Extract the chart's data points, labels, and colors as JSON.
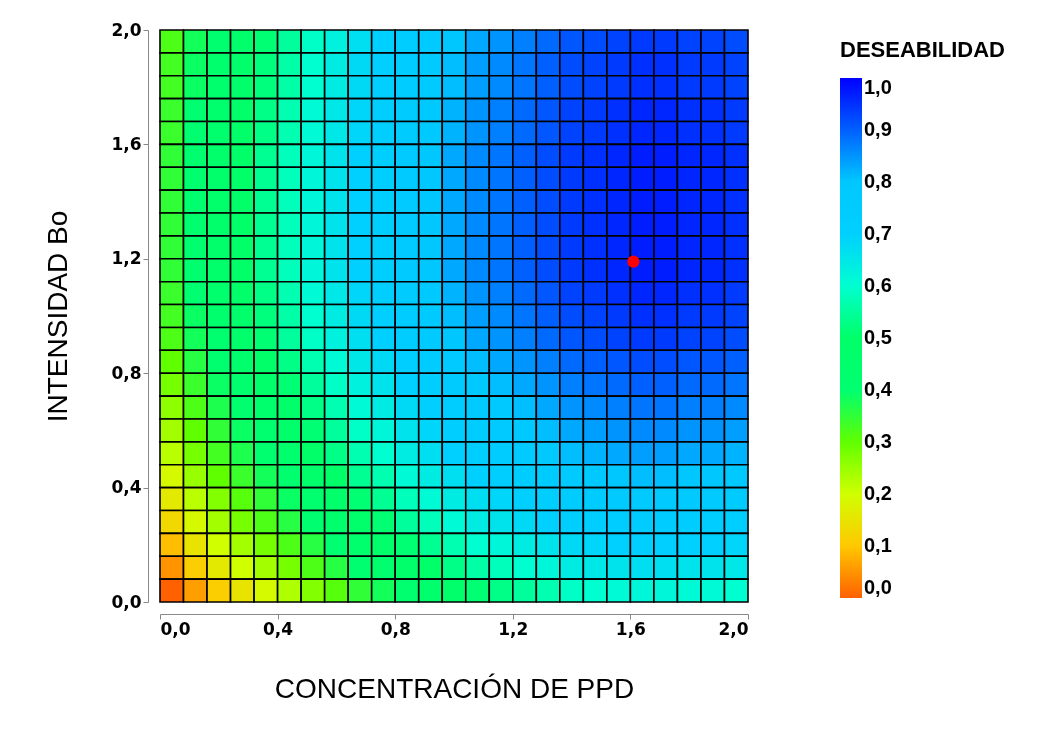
{
  "chart_data": {
    "type": "heatmap",
    "xlabel": "CONCENTRACIÓN DE PPD",
    "ylabel": "INTENSIDAD Bo",
    "legend_title": "DESEABILIDAD",
    "x": [
      0.04,
      0.12,
      0.2,
      0.28,
      0.36,
      0.44,
      0.52,
      0.6,
      0.68,
      0.76,
      0.84,
      0.92,
      1,
      1.08,
      1.16,
      1.24,
      1.32,
      1.4,
      1.48,
      1.56,
      1.64,
      1.72,
      1.8,
      1.88,
      1.96
    ],
    "y": [
      1.96,
      1.88,
      1.8,
      1.72,
      1.64,
      1.56,
      1.48,
      1.4,
      1.32,
      1.24,
      1.16,
      1.08,
      1,
      0.92,
      0.84,
      0.76,
      0.68,
      0.6,
      0.52,
      0.44,
      0.36,
      0.28,
      0.2,
      0.12,
      0.04
    ],
    "xlim": [
      0,
      2
    ],
    "ylim": [
      0,
      2
    ],
    "xticks": [
      {
        "value": 0,
        "label": "0,0"
      },
      {
        "value": 0.4,
        "label": "0,4"
      },
      {
        "value": 0.8,
        "label": "0,8"
      },
      {
        "value": 1.2,
        "label": "1,2"
      },
      {
        "value": 1.6,
        "label": "1,6"
      },
      {
        "value": 2,
        "label": "2,0"
      }
    ],
    "yticks": [
      {
        "value": 0,
        "label": "0,0"
      },
      {
        "value": 0.4,
        "label": "0,4"
      },
      {
        "value": 0.8,
        "label": "0,8"
      },
      {
        "value": 1.2,
        "label": "1,2"
      },
      {
        "value": 1.6,
        "label": "1,6"
      },
      {
        "value": 2,
        "label": "2,0"
      }
    ],
    "clim": [
      0,
      1
    ],
    "cticks": [
      {
        "value": 0,
        "label": "0,0"
      },
      {
        "value": 0.1,
        "label": "0,1"
      },
      {
        "value": 0.2,
        "label": "0,2"
      },
      {
        "value": 0.3,
        "label": "0,3"
      },
      {
        "value": 0.4,
        "label": "0,4"
      },
      {
        "value": 0.5,
        "label": "0,5"
      },
      {
        "value": 0.6,
        "label": "0,6"
      },
      {
        "value": 0.7,
        "label": "0,7"
      },
      {
        "value": 0.8,
        "label": "0,8"
      },
      {
        "value": 0.9,
        "label": "0,9"
      },
      {
        "value": 1,
        "label": "1,0"
      }
    ],
    "colors": [
      "#ff6000",
      "#ffc800",
      "#d0ff00",
      "#60ff00",
      "#00ff70",
      "#00ff68",
      "#00ffd0",
      "#00d0ff",
      "#00c8ff",
      "#0060ff",
      "#0000ff"
    ],
    "cells": [
      [
        0.32,
        0.38,
        0.43,
        0.47,
        0.51,
        0.55,
        0.59,
        0.63,
        0.67,
        0.7,
        0.74,
        0.77,
        0.8,
        0.83,
        0.85,
        0.87,
        0.89,
        0.91,
        0.92,
        0.93,
        0.94,
        0.94,
        0.93,
        0.93,
        0.92
      ],
      [
        0.33,
        0.39,
        0.44,
        0.48,
        0.52,
        0.56,
        0.6,
        0.64,
        0.68,
        0.71,
        0.75,
        0.78,
        0.81,
        0.84,
        0.86,
        0.88,
        0.9,
        0.92,
        0.93,
        0.94,
        0.95,
        0.95,
        0.94,
        0.94,
        0.93
      ],
      [
        0.33,
        0.39,
        0.44,
        0.48,
        0.52,
        0.56,
        0.6,
        0.64,
        0.68,
        0.71,
        0.75,
        0.78,
        0.81,
        0.84,
        0.86,
        0.88,
        0.9,
        0.92,
        0.93,
        0.94,
        0.95,
        0.95,
        0.94,
        0.94,
        0.93
      ],
      [
        0.34,
        0.4,
        0.45,
        0.49,
        0.53,
        0.57,
        0.61,
        0.65,
        0.69,
        0.72,
        0.76,
        0.79,
        0.82,
        0.85,
        0.87,
        0.89,
        0.91,
        0.93,
        0.94,
        0.95,
        0.96,
        0.96,
        0.95,
        0.95,
        0.94
      ],
      [
        0.34,
        0.4,
        0.45,
        0.49,
        0.53,
        0.57,
        0.61,
        0.65,
        0.69,
        0.72,
        0.76,
        0.79,
        0.82,
        0.85,
        0.87,
        0.89,
        0.91,
        0.93,
        0.94,
        0.95,
        0.96,
        0.96,
        0.95,
        0.95,
        0.94
      ],
      [
        0.35,
        0.41,
        0.46,
        0.5,
        0.54,
        0.58,
        0.62,
        0.66,
        0.7,
        0.73,
        0.77,
        0.8,
        0.83,
        0.86,
        0.88,
        0.9,
        0.92,
        0.94,
        0.95,
        0.96,
        0.97,
        0.97,
        0.96,
        0.96,
        0.95
      ],
      [
        0.35,
        0.41,
        0.46,
        0.5,
        0.54,
        0.58,
        0.62,
        0.66,
        0.7,
        0.73,
        0.77,
        0.8,
        0.83,
        0.86,
        0.88,
        0.9,
        0.92,
        0.94,
        0.95,
        0.96,
        0.97,
        0.97,
        0.96,
        0.96,
        0.95
      ],
      [
        0.35,
        0.41,
        0.46,
        0.5,
        0.54,
        0.58,
        0.62,
        0.66,
        0.7,
        0.73,
        0.77,
        0.8,
        0.83,
        0.86,
        0.88,
        0.9,
        0.92,
        0.94,
        0.95,
        0.96,
        0.97,
        0.97,
        0.96,
        0.96,
        0.95
      ],
      [
        0.35,
        0.41,
        0.46,
        0.5,
        0.54,
        0.58,
        0.62,
        0.66,
        0.7,
        0.73,
        0.77,
        0.8,
        0.83,
        0.86,
        0.88,
        0.9,
        0.92,
        0.94,
        0.95,
        0.96,
        0.97,
        0.97,
        0.96,
        0.96,
        0.95
      ],
      [
        0.35,
        0.41,
        0.46,
        0.5,
        0.54,
        0.58,
        0.62,
        0.66,
        0.7,
        0.73,
        0.77,
        0.8,
        0.83,
        0.86,
        0.88,
        0.9,
        0.92,
        0.94,
        0.95,
        0.96,
        0.97,
        0.97,
        0.96,
        0.96,
        0.95
      ],
      [
        0.35,
        0.41,
        0.46,
        0.5,
        0.54,
        0.58,
        0.62,
        0.66,
        0.7,
        0.73,
        0.77,
        0.8,
        0.83,
        0.86,
        0.88,
        0.9,
        0.92,
        0.94,
        0.95,
        0.96,
        0.97,
        0.97,
        0.96,
        0.96,
        0.95
      ],
      [
        0.34,
        0.4,
        0.45,
        0.49,
        0.53,
        0.57,
        0.61,
        0.65,
        0.69,
        0.72,
        0.76,
        0.79,
        0.82,
        0.85,
        0.87,
        0.89,
        0.91,
        0.93,
        0.94,
        0.95,
        0.96,
        0.96,
        0.95,
        0.95,
        0.94
      ],
      [
        0.33,
        0.39,
        0.44,
        0.48,
        0.52,
        0.56,
        0.6,
        0.64,
        0.68,
        0.71,
        0.75,
        0.78,
        0.81,
        0.84,
        0.86,
        0.88,
        0.9,
        0.92,
        0.93,
        0.94,
        0.95,
        0.95,
        0.94,
        0.94,
        0.93
      ],
      [
        0.32,
        0.38,
        0.43,
        0.47,
        0.51,
        0.55,
        0.59,
        0.63,
        0.67,
        0.7,
        0.74,
        0.77,
        0.8,
        0.83,
        0.85,
        0.87,
        0.89,
        0.91,
        0.92,
        0.93,
        0.94,
        0.94,
        0.93,
        0.93,
        0.92
      ],
      [
        0.3,
        0.36,
        0.41,
        0.45,
        0.49,
        0.53,
        0.57,
        0.61,
        0.65,
        0.68,
        0.72,
        0.75,
        0.78,
        0.81,
        0.83,
        0.85,
        0.87,
        0.89,
        0.9,
        0.91,
        0.92,
        0.92,
        0.91,
        0.91,
        0.9
      ],
      [
        0.28,
        0.34,
        0.39,
        0.43,
        0.47,
        0.51,
        0.55,
        0.59,
        0.63,
        0.66,
        0.7,
        0.73,
        0.76,
        0.79,
        0.81,
        0.83,
        0.85,
        0.87,
        0.88,
        0.89,
        0.9,
        0.9,
        0.89,
        0.89,
        0.88
      ],
      [
        0.26,
        0.32,
        0.37,
        0.41,
        0.45,
        0.49,
        0.53,
        0.57,
        0.61,
        0.64,
        0.68,
        0.71,
        0.74,
        0.77,
        0.79,
        0.81,
        0.83,
        0.85,
        0.86,
        0.87,
        0.88,
        0.88,
        0.87,
        0.87,
        0.86
      ],
      [
        0.24,
        0.3,
        0.35,
        0.39,
        0.43,
        0.47,
        0.51,
        0.55,
        0.59,
        0.62,
        0.66,
        0.69,
        0.72,
        0.75,
        0.77,
        0.79,
        0.81,
        0.83,
        0.84,
        0.85,
        0.86,
        0.86,
        0.85,
        0.85,
        0.84
      ],
      [
        0.22,
        0.28,
        0.33,
        0.37,
        0.41,
        0.45,
        0.49,
        0.53,
        0.57,
        0.6,
        0.64,
        0.67,
        0.7,
        0.73,
        0.75,
        0.77,
        0.79,
        0.81,
        0.82,
        0.83,
        0.84,
        0.84,
        0.83,
        0.83,
        0.82
      ],
      [
        0.19,
        0.25,
        0.3,
        0.34,
        0.38,
        0.42,
        0.46,
        0.5,
        0.54,
        0.57,
        0.61,
        0.64,
        0.67,
        0.7,
        0.72,
        0.74,
        0.76,
        0.78,
        0.79,
        0.8,
        0.81,
        0.81,
        0.8,
        0.8,
        0.79
      ],
      [
        0.16,
        0.22,
        0.27,
        0.31,
        0.35,
        0.39,
        0.43,
        0.47,
        0.51,
        0.54,
        0.58,
        0.61,
        0.64,
        0.67,
        0.69,
        0.71,
        0.73,
        0.75,
        0.76,
        0.77,
        0.78,
        0.78,
        0.77,
        0.77,
        0.76
      ],
      [
        0.13,
        0.19,
        0.24,
        0.28,
        0.32,
        0.36,
        0.4,
        0.44,
        0.48,
        0.51,
        0.55,
        0.58,
        0.61,
        0.64,
        0.66,
        0.68,
        0.7,
        0.72,
        0.73,
        0.74,
        0.75,
        0.75,
        0.74,
        0.74,
        0.73
      ],
      [
        0.09,
        0.15,
        0.2,
        0.24,
        0.28,
        0.32,
        0.36,
        0.4,
        0.44,
        0.47,
        0.51,
        0.54,
        0.57,
        0.6,
        0.62,
        0.64,
        0.66,
        0.68,
        0.69,
        0.7,
        0.71,
        0.71,
        0.7,
        0.7,
        0.69
      ],
      [
        0.05,
        0.11,
        0.16,
        0.2,
        0.24,
        0.28,
        0.32,
        0.36,
        0.4,
        0.43,
        0.47,
        0.5,
        0.53,
        0.56,
        0.58,
        0.6,
        0.62,
        0.64,
        0.65,
        0.66,
        0.67,
        0.67,
        0.66,
        0.66,
        0.65
      ],
      [
        0.0,
        0.06,
        0.11,
        0.15,
        0.19,
        0.23,
        0.27,
        0.31,
        0.35,
        0.38,
        0.42,
        0.45,
        0.48,
        0.51,
        0.53,
        0.55,
        0.57,
        0.59,
        0.6,
        0.61,
        0.62,
        0.62,
        0.61,
        0.61,
        0.6
      ]
    ],
    "series": [
      {
        "type": "scatter",
        "x": [
          1.61
        ],
        "values": [
          1.19
        ],
        "color": "#ff0000"
      }
    ]
  }
}
